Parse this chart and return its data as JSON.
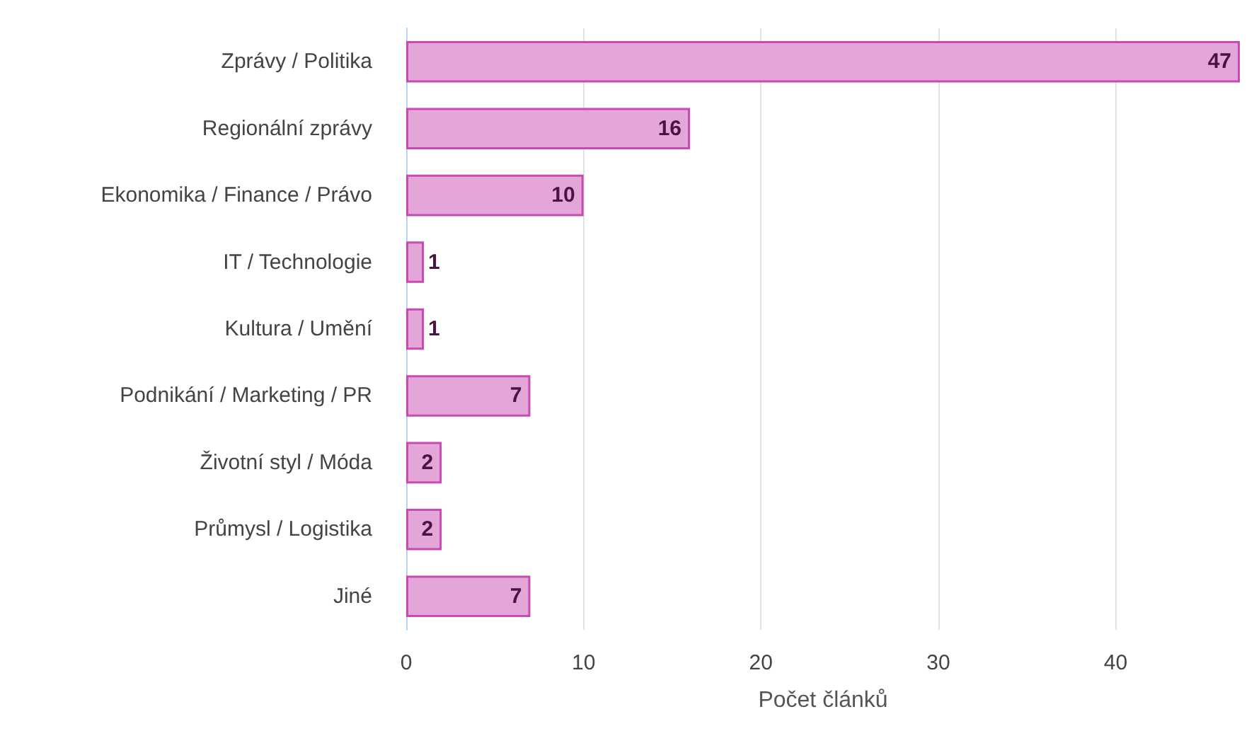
{
  "chart_data": {
    "type": "bar",
    "orientation": "horizontal",
    "xlabel": "Počet článků",
    "categories": [
      "Zprávy / Politika",
      "Regionální zprávy",
      "Ekonomika / Finance / Právo",
      "IT / Technologie",
      "Kultura / Umění",
      "Podnikání / Marketing / PR",
      "Životní styl / Móda",
      "Průmysl / Logistika",
      "Jiné"
    ],
    "values": [
      47,
      16,
      10,
      1,
      1,
      7,
      2,
      2,
      7
    ],
    "color": "#e4a6d9",
    "xlim": [
      0,
      47
    ],
    "xticks": [
      0,
      10,
      20,
      30,
      40
    ],
    "grid": "x",
    "data_labels": true
  }
}
